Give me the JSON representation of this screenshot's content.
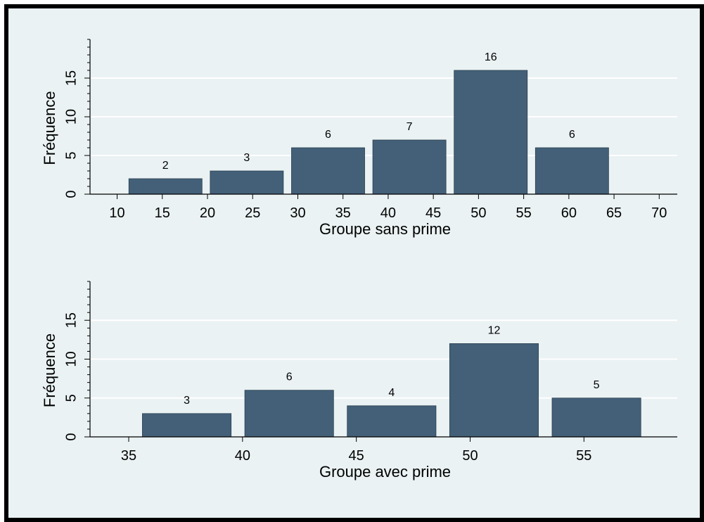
{
  "chart_data": [
    {
      "type": "bar",
      "xlabel": "Groupe sans prime",
      "ylabel": "Fréquence",
      "x_ticks": [
        10,
        15,
        20,
        25,
        30,
        35,
        40,
        45,
        50,
        55,
        60,
        65,
        70
      ],
      "y_ticks": [
        0,
        5,
        10,
        15
      ],
      "ylim": [
        0,
        20
      ],
      "bins": [
        {
          "from": 11.3,
          "to": 19.4,
          "value": 2
        },
        {
          "from": 20.3,
          "to": 28.4,
          "value": 3
        },
        {
          "from": 29.3,
          "to": 37.4,
          "value": 6
        },
        {
          "from": 38.3,
          "to": 46.4,
          "value": 7
        },
        {
          "from": 47.3,
          "to": 55.4,
          "value": 16
        },
        {
          "from": 56.3,
          "to": 64.4,
          "value": 6
        }
      ],
      "xlim": [
        7,
        72
      ],
      "bar_color": "#436078",
      "grid": true
    },
    {
      "type": "bar",
      "xlabel": "Groupe avec prime",
      "ylabel": "Fréquence",
      "x_ticks": [
        35,
        40,
        45,
        50,
        55
      ],
      "y_ticks": [
        0,
        5,
        10,
        15
      ],
      "ylim": [
        0,
        20
      ],
      "bins": [
        {
          "from": 35.6,
          "to": 39.5,
          "value": 3
        },
        {
          "from": 40.1,
          "to": 44.0,
          "value": 6
        },
        {
          "from": 44.6,
          "to": 48.5,
          "value": 4
        },
        {
          "from": 49.1,
          "to": 53.0,
          "value": 12
        },
        {
          "from": 53.6,
          "to": 57.5,
          "value": 5
        }
      ],
      "xlim": [
        33.3,
        59.1
      ],
      "bar_color": "#436078",
      "grid": true
    }
  ]
}
